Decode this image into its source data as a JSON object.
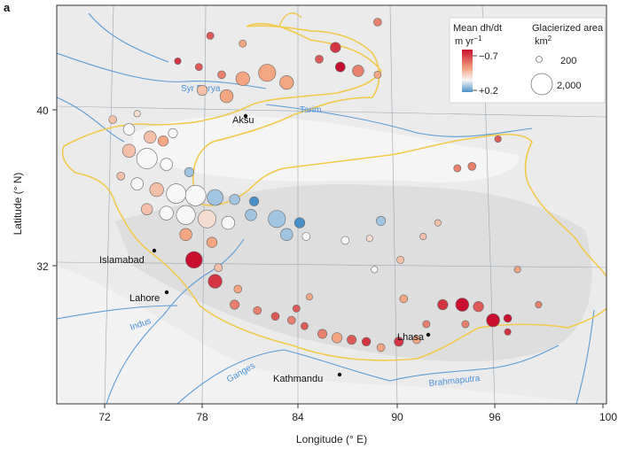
{
  "panel_label": "a",
  "axes": {
    "xlabel": "Longitude (° E)",
    "ylabel": "Latitude (° N)",
    "x_ticks": [
      "72",
      "78",
      "84",
      "90",
      "96",
      "100"
    ],
    "y_ticks": [
      "40",
      "32"
    ]
  },
  "legend": {
    "title_left": "Mean dh/dt",
    "title_right": "Glacierized area",
    "unit_left": "m yr",
    "unit_left_sup": "−1",
    "unit_right": "km",
    "unit_right_sup": "2",
    "scale_top": "−0.7",
    "scale_bottom": "+0.2",
    "size_small": "200",
    "size_large": "2,000"
  },
  "rivers": [
    "Syr Darya",
    "Tarim",
    "Indus",
    "Ganges",
    "Brahmaputra"
  ],
  "cities": [
    "Aksu",
    "Islamabad",
    "Lahore",
    "Lhasa",
    "Kathmandu"
  ],
  "colors": {
    "scale_top": "#c8102e",
    "scale_bottom": "#4a90c8",
    "outline": "#f2c94c",
    "river": "#5b9bd5",
    "land": "#e8e8e8"
  },
  "map_data": {
    "type": "proportional_symbol_map",
    "value_meaning": "mean dh/dt in m per year (negative = thinning)",
    "glaciers": [
      {
        "lon": 88.8,
        "lat": 44.5,
        "dhdt": -0.4,
        "area": 300
      },
      {
        "lon": 78.5,
        "lat": 43.8,
        "dhdt": -0.5,
        "area": 250
      },
      {
        "lon": 80.5,
        "lat": 43.4,
        "dhdt": -0.3,
        "area": 250
      },
      {
        "lon": 86.2,
        "lat": 43.2,
        "dhdt": -0.6,
        "area": 500
      },
      {
        "lon": 85.2,
        "lat": 42.6,
        "dhdt": -0.5,
        "area": 300
      },
      {
        "lon": 86.5,
        "lat": 42.2,
        "dhdt": -0.7,
        "area": 450
      },
      {
        "lon": 87.6,
        "lat": 42.0,
        "dhdt": -0.4,
        "area": 600
      },
      {
        "lon": 88.8,
        "lat": 41.8,
        "dhdt": -0.3,
        "area": 250
      },
      {
        "lon": 76.5,
        "lat": 42.5,
        "dhdt": -0.6,
        "area": 200
      },
      {
        "lon": 77.8,
        "lat": 42.2,
        "dhdt": -0.5,
        "area": 250
      },
      {
        "lon": 79.2,
        "lat": 41.8,
        "dhdt": -0.4,
        "area": 300
      },
      {
        "lon": 80.5,
        "lat": 41.6,
        "dhdt": -0.3,
        "area": 900
      },
      {
        "lon": 82.0,
        "lat": 41.9,
        "dhdt": -0.3,
        "area": 1400
      },
      {
        "lon": 83.2,
        "lat": 41.4,
        "dhdt": -0.3,
        "area": 900
      },
      {
        "lon": 78.0,
        "lat": 41.0,
        "dhdt": -0.2,
        "area": 500
      },
      {
        "lon": 79.5,
        "lat": 40.7,
        "dhdt": -0.3,
        "area": 800
      },
      {
        "lon": 74.0,
        "lat": 39.8,
        "dhdt": -0.1,
        "area": 200
      },
      {
        "lon": 72.5,
        "lat": 39.5,
        "dhdt": -0.2,
        "area": 300
      },
      {
        "lon": 73.5,
        "lat": 39.0,
        "dhdt": 0.0,
        "area": 600
      },
      {
        "lon": 74.8,
        "lat": 38.6,
        "dhdt": -0.2,
        "area": 700
      },
      {
        "lon": 75.6,
        "lat": 38.4,
        "dhdt": -0.3,
        "area": 500
      },
      {
        "lon": 76.2,
        "lat": 38.8,
        "dhdt": 0.0,
        "area": 400
      },
      {
        "lon": 73.5,
        "lat": 37.9,
        "dhdt": -0.2,
        "area": 800
      },
      {
        "lon": 74.6,
        "lat": 37.5,
        "dhdt": 0.0,
        "area": 2000
      },
      {
        "lon": 75.8,
        "lat": 37.2,
        "dhdt": 0.0,
        "area": 700
      },
      {
        "lon": 77.2,
        "lat": 36.8,
        "dhdt": 0.1,
        "area": 400
      },
      {
        "lon": 73.0,
        "lat": 36.6,
        "dhdt": -0.2,
        "area": 300
      },
      {
        "lon": 74.0,
        "lat": 36.2,
        "dhdt": 0.0,
        "area": 700
      },
      {
        "lon": 75.2,
        "lat": 35.9,
        "dhdt": -0.2,
        "area": 900
      },
      {
        "lon": 76.4,
        "lat": 35.7,
        "dhdt": 0.0,
        "area": 1800
      },
      {
        "lon": 77.6,
        "lat": 35.6,
        "dhdt": 0.0,
        "area": 2000
      },
      {
        "lon": 78.8,
        "lat": 35.5,
        "dhdt": 0.1,
        "area": 1200
      },
      {
        "lon": 80.0,
        "lat": 35.4,
        "dhdt": 0.1,
        "area": 500
      },
      {
        "lon": 81.2,
        "lat": 35.3,
        "dhdt": 0.2,
        "area": 400
      },
      {
        "lon": 74.6,
        "lat": 34.9,
        "dhdt": -0.2,
        "area": 600
      },
      {
        "lon": 75.8,
        "lat": 34.7,
        "dhdt": 0.0,
        "area": 900
      },
      {
        "lon": 77.0,
        "lat": 34.6,
        "dhdt": 0.0,
        "area": 1700
      },
      {
        "lon": 78.3,
        "lat": 34.4,
        "dhdt": -0.1,
        "area": 1500
      },
      {
        "lon": 79.6,
        "lat": 34.2,
        "dhdt": 0.0,
        "area": 800
      },
      {
        "lon": 81.0,
        "lat": 34.6,
        "dhdt": 0.1,
        "area": 600
      },
      {
        "lon": 82.6,
        "lat": 34.4,
        "dhdt": 0.1,
        "area": 1400
      },
      {
        "lon": 84.0,
        "lat": 34.2,
        "dhdt": 0.2,
        "area": 500
      },
      {
        "lon": 83.2,
        "lat": 33.6,
        "dhdt": 0.1,
        "area": 700
      },
      {
        "lon": 84.4,
        "lat": 33.5,
        "dhdt": 0.0,
        "area": 300
      },
      {
        "lon": 77.0,
        "lat": 33.6,
        "dhdt": -0.3,
        "area": 700
      },
      {
        "lon": 78.6,
        "lat": 33.2,
        "dhdt": -0.3,
        "area": 500
      },
      {
        "lon": 77.5,
        "lat": 32.3,
        "dhdt": -0.7,
        "area": 1300
      },
      {
        "lon": 79.0,
        "lat": 31.9,
        "dhdt": -0.2,
        "area": 300
      },
      {
        "lon": 78.8,
        "lat": 31.2,
        "dhdt": -0.6,
        "area": 900
      },
      {
        "lon": 80.2,
        "lat": 30.8,
        "dhdt": -0.3,
        "area": 300
      },
      {
        "lon": 80.0,
        "lat": 30.0,
        "dhdt": -0.4,
        "area": 400
      },
      {
        "lon": 81.4,
        "lat": 29.7,
        "dhdt": -0.4,
        "area": 300
      },
      {
        "lon": 82.5,
        "lat": 29.4,
        "dhdt": -0.5,
        "area": 300
      },
      {
        "lon": 83.5,
        "lat": 29.2,
        "dhdt": -0.4,
        "area": 300
      },
      {
        "lon": 84.3,
        "lat": 28.9,
        "dhdt": -0.5,
        "area": 250
      },
      {
        "lon": 83.8,
        "lat": 29.8,
        "dhdt": -0.5,
        "area": 250
      },
      {
        "lon": 84.6,
        "lat": 30.4,
        "dhdt": -0.3,
        "area": 200
      },
      {
        "lon": 85.4,
        "lat": 28.5,
        "dhdt": -0.4,
        "area": 400
      },
      {
        "lon": 86.3,
        "lat": 28.3,
        "dhdt": -0.3,
        "area": 500
      },
      {
        "lon": 87.2,
        "lat": 28.2,
        "dhdt": -0.5,
        "area": 400
      },
      {
        "lon": 88.1,
        "lat": 28.1,
        "dhdt": -0.6,
        "area": 350
      },
      {
        "lon": 89.0,
        "lat": 27.8,
        "dhdt": -0.3,
        "area": 300
      },
      {
        "lon": 90.1,
        "lat": 28.1,
        "dhdt": -0.6,
        "area": 400
      },
      {
        "lon": 91.2,
        "lat": 28.2,
        "dhdt": -0.3,
        "area": 300
      },
      {
        "lon": 91.8,
        "lat": 29.0,
        "dhdt": -0.4,
        "area": 250
      },
      {
        "lon": 92.8,
        "lat": 30.0,
        "dhdt": -0.6,
        "area": 500
      },
      {
        "lon": 94.0,
        "lat": 30.0,
        "dhdt": -0.7,
        "area": 800
      },
      {
        "lon": 95.0,
        "lat": 29.9,
        "dhdt": -0.5,
        "area": 500
      },
      {
        "lon": 95.9,
        "lat": 29.2,
        "dhdt": -0.7,
        "area": 800
      },
      {
        "lon": 96.8,
        "lat": 29.3,
        "dhdt": -0.7,
        "area": 300
      },
      {
        "lon": 94.2,
        "lat": 29.0,
        "dhdt": -0.4,
        "area": 250
      },
      {
        "lon": 96.8,
        "lat": 28.6,
        "dhdt": -0.6,
        "area": 200
      },
      {
        "lon": 90.4,
        "lat": 30.3,
        "dhdt": -0.3,
        "area": 300
      },
      {
        "lon": 89.0,
        "lat": 34.3,
        "dhdt": 0.1,
        "area": 400
      },
      {
        "lon": 86.8,
        "lat": 33.3,
        "dhdt": 0.0,
        "area": 300
      },
      {
        "lon": 88.3,
        "lat": 33.4,
        "dhdt": -0.1,
        "area": 200
      },
      {
        "lon": 91.6,
        "lat": 33.5,
        "dhdt": -0.2,
        "area": 200
      },
      {
        "lon": 90.2,
        "lat": 32.3,
        "dhdt": -0.2,
        "area": 250
      },
      {
        "lon": 88.6,
        "lat": 31.8,
        "dhdt": 0.0,
        "area": 200
      },
      {
        "lon": 92.5,
        "lat": 34.2,
        "dhdt": -0.2,
        "area": 200
      },
      {
        "lon": 93.7,
        "lat": 37.0,
        "dhdt": -0.4,
        "area": 250
      },
      {
        "lon": 94.6,
        "lat": 37.1,
        "dhdt": -0.4,
        "area": 300
      },
      {
        "lon": 96.2,
        "lat": 38.5,
        "dhdt": -0.5,
        "area": 200
      },
      {
        "lon": 97.4,
        "lat": 31.8,
        "dhdt": -0.3,
        "area": 200
      },
      {
        "lon": 98.7,
        "lat": 30.0,
        "dhdt": -0.4,
        "area": 200
      }
    ]
  }
}
